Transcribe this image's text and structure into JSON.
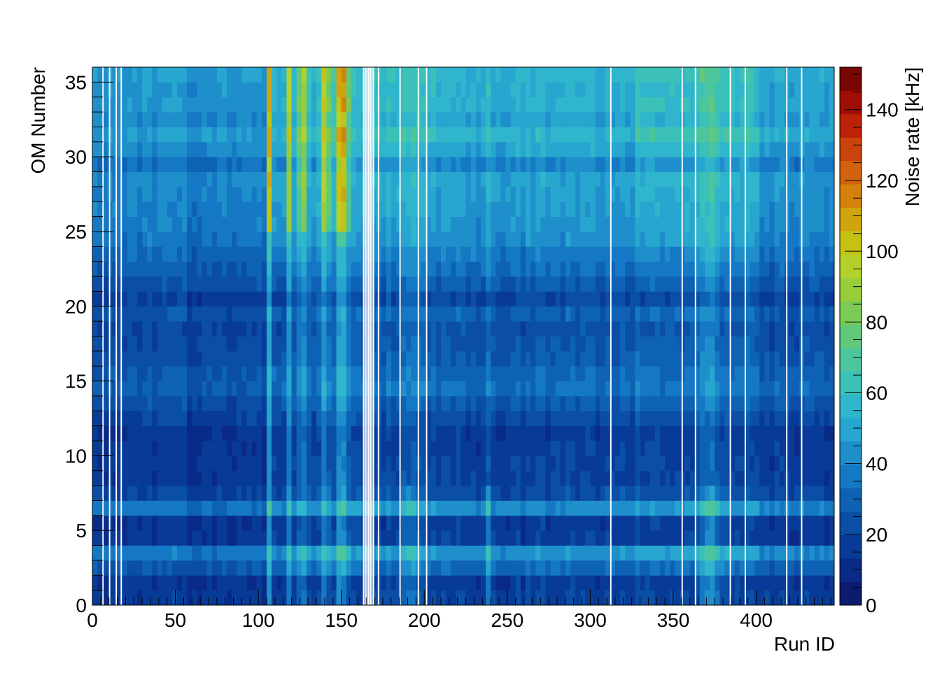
{
  "chart_data": {
    "type": "heatmap",
    "title": "",
    "xlabel": "Run ID",
    "ylabel": "OM Number",
    "zlabel": "Noise rate [kHz]",
    "xlim": [
      0,
      447
    ],
    "ylim": [
      0,
      36
    ],
    "zlim": [
      0,
      152
    ],
    "x_ticks": [
      0,
      50,
      100,
      150,
      200,
      250,
      300,
      350,
      400
    ],
    "y_ticks": [
      0,
      5,
      10,
      15,
      20,
      25,
      30,
      35
    ],
    "z_ticks": [
      0,
      20,
      40,
      60,
      80,
      100,
      120,
      140
    ],
    "colormap": [
      "#0d1b6e",
      "#0a2a88",
      "#083b98",
      "#0a4ea6",
      "#0e62b4",
      "#1578c4",
      "#1f8fcc",
      "#27a6cf",
      "#2fb6cc",
      "#3bc1b8",
      "#4cc69a",
      "#62c97a",
      "#7ccb56",
      "#99cd3a",
      "#b3d12a",
      "#c5c214",
      "#cfa40e",
      "#d5820c",
      "#d2620d",
      "#ca420c",
      "#bb2208",
      "#9e0e04",
      "#7a0603"
    ],
    "om_profile": [
      18,
      16,
      30,
      42,
      17,
      16,
      40,
      22,
      18,
      18,
      17,
      16,
      21,
      26,
      32,
      30,
      26,
      25,
      23,
      28,
      20,
      27,
      32,
      36,
      41,
      43,
      44,
      46,
      47,
      39,
      48,
      54,
      47,
      52,
      51,
      53
    ],
    "run_features": [
      {
        "center": 106,
        "width": 1.5,
        "gain": 38
      },
      {
        "center": 118,
        "width": 1.5,
        "gain": 30
      },
      {
        "center": 126,
        "width": 2.5,
        "gain": 30
      },
      {
        "center": 140,
        "width": 2.5,
        "gain": 36
      },
      {
        "center": 150,
        "width": 4,
        "gain": 44
      },
      {
        "center": 190,
        "width": 5,
        "gain": 16
      },
      {
        "center": 238,
        "width": 2,
        "gain": 22
      },
      {
        "center": 372,
        "width": 6,
        "gain": 22
      }
    ],
    "gaps": [
      6,
      10,
      14,
      17,
      163,
      164,
      165,
      166,
      167,
      168,
      169,
      172,
      185,
      196,
      201,
      312,
      355,
      363,
      384,
      393,
      418,
      427
    ]
  }
}
